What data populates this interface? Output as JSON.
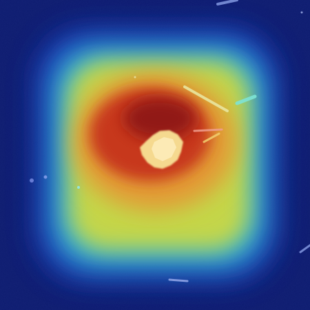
{
  "image": {
    "kind": "heatmap-overlay",
    "colormap": "jet",
    "colors": {
      "background": "#0c1a6e",
      "low": "#1a2ba8",
      "cool": "#2f7fe8",
      "cyan": "#3fd6c8",
      "mid": "#b7d64a",
      "warm": "#e3a43a",
      "hot": "#c0311e",
      "peak": "#8a1410",
      "object": "#f5d890"
    }
  }
}
